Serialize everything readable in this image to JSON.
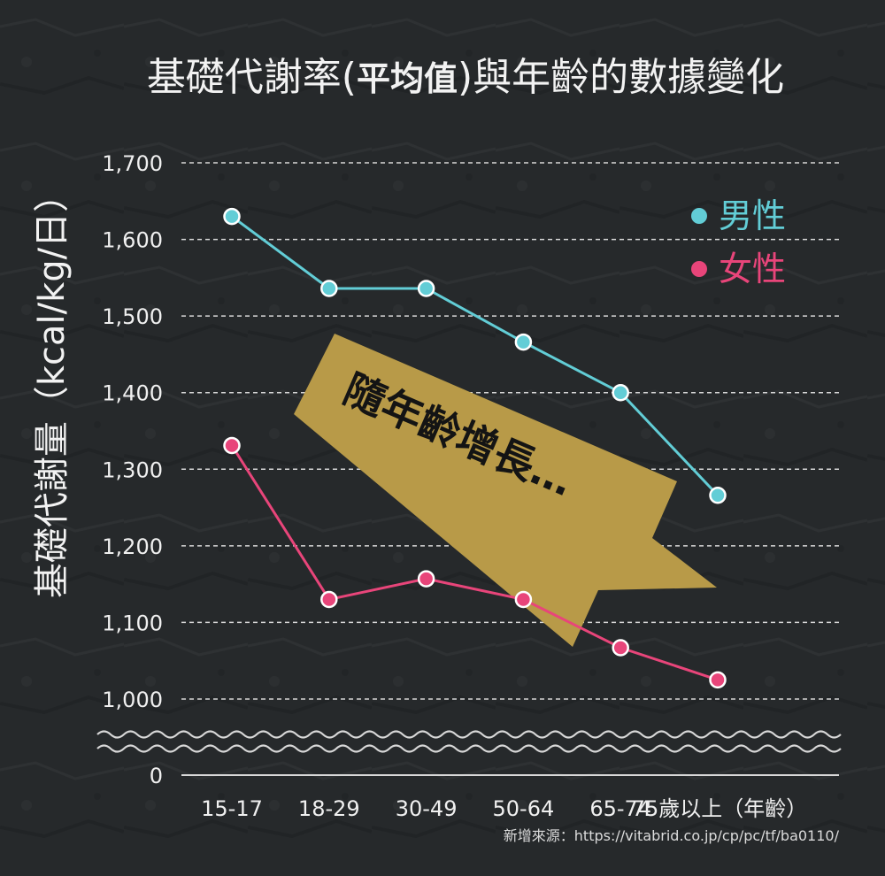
{
  "colors": {
    "background": "#26292b",
    "male": "#62cdd6",
    "female": "#e8457a",
    "arrow": "#b89a48",
    "grid": "#d8d8d8",
    "text": "#f2f2f2"
  },
  "chart_data": {
    "type": "line",
    "title": {
      "prefix": "基礎代謝率(",
      "emphasis": "平均值",
      "suffix": ")與年齡的數據變化"
    },
    "ylabel": "基礎代謝量（kcal/kg/日）",
    "xlabel": "",
    "categories": [
      "15-17",
      "18-29",
      "30-49",
      "50-64",
      "65-74",
      "75歲以上（年齡）"
    ],
    "yticks": [
      "1,700",
      "1,600",
      "1,500",
      "1,400",
      "1,300",
      "1,200",
      "1,100",
      "1,000",
      "0"
    ],
    "ylim": [
      1000,
      1700
    ],
    "axis_break": true,
    "grid": true,
    "legend_position": "top-right",
    "series": [
      {
        "name": "男性",
        "color": "#62cdd6",
        "values": [
          1630,
          1536,
          1536,
          1466,
          1400,
          1266
        ]
      },
      {
        "name": "女性",
        "color": "#e8457a",
        "values": [
          1331,
          1130,
          1157,
          1130,
          1067,
          1025
        ]
      }
    ],
    "annotation": "隨年齡增長…"
  },
  "source": "新增來源：https://vitabrid.co.jp/cp/pc/tf/ba0110/"
}
